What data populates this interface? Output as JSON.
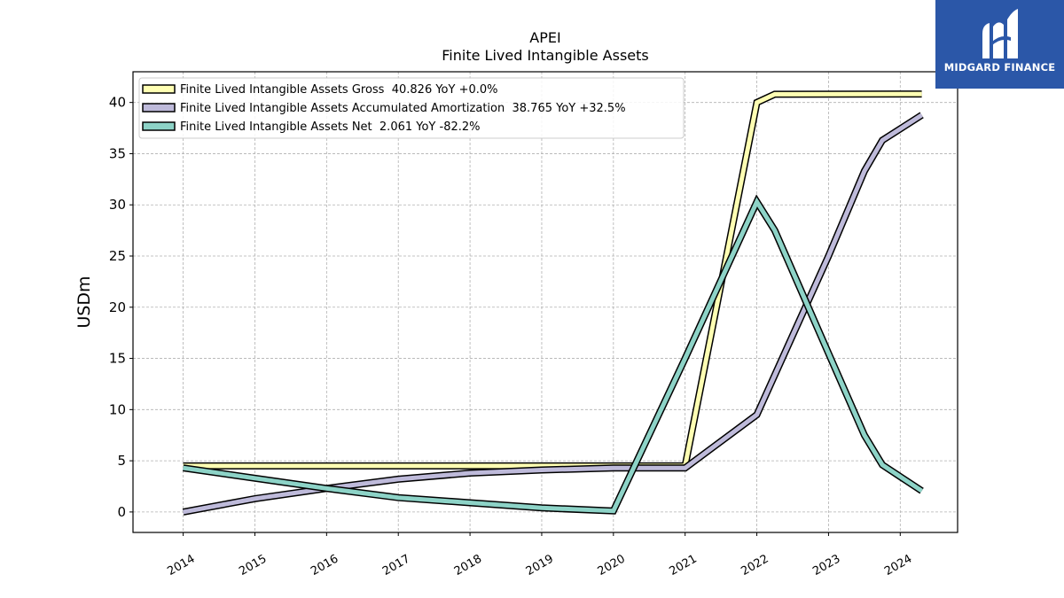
{
  "logo": {
    "text": "MIDGARD FINANCE"
  },
  "chart_data": {
    "type": "line",
    "title": "APEI",
    "subtitle": "Finite Lived Intangible Assets",
    "ylabel": "USDm",
    "xlabel": "",
    "ylim": [
      -2,
      43
    ],
    "yticks": [
      0,
      5,
      10,
      15,
      20,
      25,
      30,
      35,
      40
    ],
    "xlim": [
      2013.3,
      2024.8
    ],
    "xticks": [
      "2014",
      "2015",
      "2016",
      "2017",
      "2018",
      "2019",
      "2020",
      "2021",
      "2022",
      "2023",
      "2024"
    ],
    "grid": true,
    "legend_position": "top-left",
    "series": [
      {
        "name": "Finite Lived Intangible Assets Gross  40.826 YoY +0.0%",
        "color": "#ffffb3",
        "x": [
          2014,
          2019,
          2020,
          2021,
          2022,
          2022.25,
          2024.3
        ],
        "y": [
          4.5,
          4.5,
          4.5,
          4.5,
          40.0,
          40.8,
          40.826
        ]
      },
      {
        "name": "Finite Lived Intangible Assets Accumulated Amortization  38.765 YoY +32.5%",
        "color": "#bebada",
        "x": [
          2014,
          2015,
          2016,
          2017,
          2018,
          2019,
          2020,
          2021,
          2022,
          2023,
          2023.5,
          2023.75,
          2024.3
        ],
        "y": [
          0.0,
          1.3,
          2.3,
          3.2,
          3.8,
          4.1,
          4.3,
          4.3,
          9.5,
          25.0,
          33.3,
          36.3,
          38.765
        ]
      },
      {
        "name": "Finite Lived Intangible Assets Net  2.061 YoY -82.2%",
        "color": "#8dd3c7",
        "x": [
          2014,
          2015,
          2016,
          2017,
          2018,
          2019,
          2020,
          2021,
          2022,
          2022.25,
          2023,
          2023.5,
          2023.75,
          2024.3
        ],
        "y": [
          4.3,
          3.3,
          2.3,
          1.4,
          0.9,
          0.4,
          0.1,
          15.0,
          30.3,
          27.5,
          15.5,
          7.5,
          4.6,
          2.061
        ]
      }
    ]
  }
}
